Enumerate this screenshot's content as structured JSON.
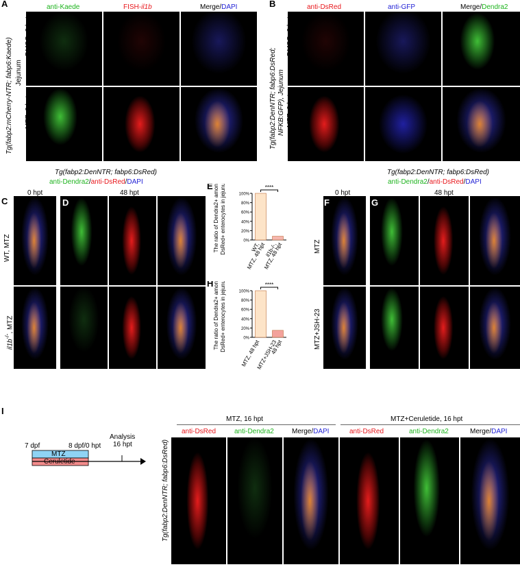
{
  "panels": {
    "A": {
      "label": "A",
      "columns": [
        [
          "anti-Kaede"
        ],
        [
          "FISH-",
          "il1b"
        ],
        [
          "Merge/",
          "DAPI"
        ]
      ],
      "rows": [
        "DMSO, 0 hpt",
        "MTZ, 0 hpt"
      ],
      "line": "Tg(fabp2:mCherry-NTR; fabp6:Kaede)",
      "tissue": "Jejunum"
    },
    "B": {
      "label": "B",
      "columns": [
        [
          "anti-DsRed"
        ],
        [
          "anti-GFP"
        ],
        [
          "Merge/",
          "Dendra2"
        ]
      ],
      "rows": [
        "DMSO, 0 hpt",
        "MTZ, 0 hpt"
      ],
      "line": "Tg(fabp2:DenNTR; fabp6:DsRed;",
      "line2": "NFKB:GFP), Jejunum"
    },
    "CD": {
      "labels": [
        "C",
        "D"
      ],
      "line": "Tg(fabp2:DenNTR; fabp6:DsRed)",
      "stain": [
        "anti-Dendra2",
        "/",
        "anti-DsRed",
        "/",
        "DAPI"
      ],
      "times": [
        "0 hpt",
        "48 hpt"
      ],
      "rows": [
        [
          "WT, MTZ"
        ],
        [
          "il1b",
          "-/-",
          ", MTZ"
        ]
      ]
    },
    "FG": {
      "labels": [
        "F",
        "G"
      ],
      "line": "Tg(fabp2:DenNTR; fabp6:DsRed)",
      "stain": [
        "anti-Dendra2",
        "/",
        "anti-DsRed",
        "/",
        "DAPI"
      ],
      "times": [
        "0 hpt",
        "48 hpt"
      ],
      "rows": [
        "MTZ",
        "MTZ+JSH-23"
      ]
    },
    "I": {
      "label": "I",
      "timeline": {
        "start": "7 dpf",
        "mid": "8 dpf/0 hpt",
        "analysis": "Analysis",
        "end": "16 hpt",
        "drug1": "MTZ",
        "drug2": "Ceruletide"
      },
      "groups": [
        "MTZ, 16 hpt",
        "MTZ+Ceruletide, 16 hpt"
      ],
      "columns": [
        [
          "anti-DsRed"
        ],
        [
          "anti-Dendra2"
        ],
        [
          "Merge/",
          "DAPI"
        ]
      ],
      "line": "Tg(fabp2:DenNTR; fabp6:DsRed)"
    }
  },
  "chart_data": [
    {
      "type": "bar",
      "label": "E",
      "y_label": [
        "The ratio of Dendra2+ among",
        "DsRed+ enterocytes in jejunum"
      ],
      "categories": [
        [
          "WT,",
          "MTZ, 48 hpt"
        ],
        [
          "il1b-/-,",
          "MTZ, 48 hpt"
        ]
      ],
      "values": [
        100,
        8
      ],
      "colors": [
        "#fde4c8",
        "#f6b6ae"
      ],
      "ylim": [
        0,
        100
      ],
      "yticks": [
        {
          "value": 0,
          "label": "0%"
        },
        {
          "value": 20,
          "label": "20%"
        },
        {
          "value": 40,
          "label": "40%"
        },
        {
          "value": 60,
          "label": "60%"
        },
        {
          "value": 80,
          "label": "80%"
        },
        {
          "value": 100,
          "label": "100%"
        }
      ],
      "significance": "****"
    },
    {
      "type": "bar",
      "label": "H",
      "y_label": [
        "The ratio of Dendra2+ among",
        "DsRed+ enterocytes in jejunum"
      ],
      "categories": [
        [
          "MTZ, 48 hpt"
        ],
        [
          "MTZ+JSH-23",
          "48 hpt"
        ]
      ],
      "values": [
        100,
        15
      ],
      "colors": [
        "#fde4c8",
        "#f3a29c"
      ],
      "ylim": [
        0,
        100
      ],
      "yticks": [
        {
          "value": 0,
          "label": "0%"
        },
        {
          "value": 20,
          "label": "20%"
        },
        {
          "value": 40,
          "label": "40%"
        },
        {
          "value": 60,
          "label": "60%"
        },
        {
          "value": 80,
          "label": "80%"
        },
        {
          "value": 100,
          "label": "100%"
        }
      ],
      "significance": "****"
    }
  ]
}
